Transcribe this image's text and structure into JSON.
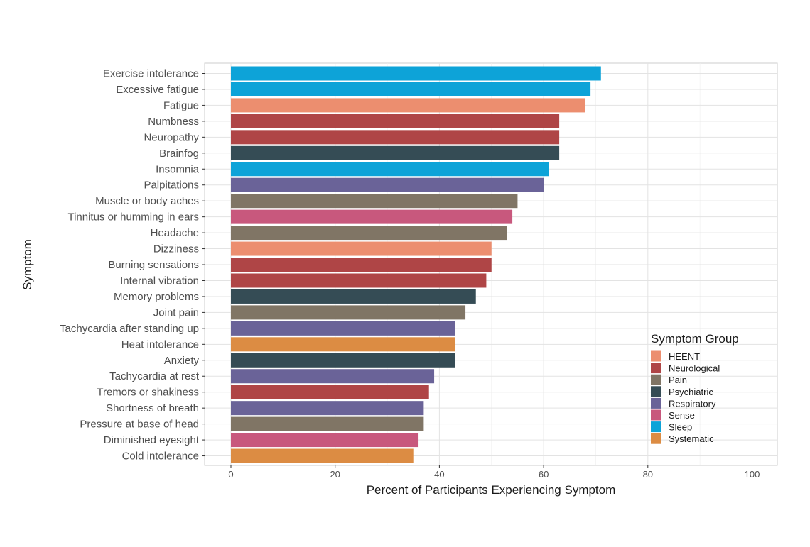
{
  "chart_data": {
    "type": "bar",
    "orientation": "horizontal",
    "title": "",
    "xlabel": "Percent of Participants Experiencing Symptom",
    "ylabel": "Symptom",
    "xlim": [
      -5,
      105
    ],
    "xticks": [
      0,
      20,
      40,
      60,
      80,
      100
    ],
    "grid": true,
    "legend": {
      "title": "Symptom Group",
      "placement": "bottom-right",
      "entries": [
        "HEENT",
        "Neurological",
        "Pain",
        "Psychiatric",
        "Respiratory",
        "Sense",
        "Sleep",
        "Systematic"
      ]
    },
    "colors": {
      "HEENT": "#EC8E6F",
      "Neurological": "#AF4546",
      "Pain": "#807565",
      "Psychiatric": "#354C55",
      "Respiratory": "#6A6398",
      "Sense": "#C8587D",
      "Sleep": "#0DA3D8",
      "Systematic": "#DC8C43"
    },
    "categories": [
      "Exercise intolerance",
      "Excessive fatigue",
      "Fatigue",
      "Numbness",
      "Neuropathy",
      "Brainfog",
      "Insomnia",
      "Palpitations",
      "Muscle or body aches",
      "Tinnitus or humming in ears",
      "Headache",
      "Dizziness",
      "Burning sensations",
      "Internal vibration",
      "Memory problems",
      "Joint pain",
      "Tachycardia after standing up",
      "Heat intolerance",
      "Anxiety",
      "Tachycardia at rest",
      "Tremors or shakiness",
      "Shortness of breath",
      "Pressure at base of head",
      "Diminished eyesight",
      "Cold intolerance"
    ],
    "values": [
      71,
      69,
      68,
      63,
      63,
      63,
      61,
      60,
      55,
      54,
      53,
      50,
      50,
      49,
      47,
      45,
      43,
      43,
      43,
      39,
      38,
      37,
      37,
      36,
      35
    ],
    "groups": [
      "Sleep",
      "Sleep",
      "HEENT",
      "Neurological",
      "Neurological",
      "Psychiatric",
      "Sleep",
      "Respiratory",
      "Pain",
      "Sense",
      "Pain",
      "HEENT",
      "Neurological",
      "Neurological",
      "Psychiatric",
      "Pain",
      "Respiratory",
      "Systematic",
      "Psychiatric",
      "Respiratory",
      "Neurological",
      "Respiratory",
      "Pain",
      "Sense",
      "Systematic"
    ]
  }
}
